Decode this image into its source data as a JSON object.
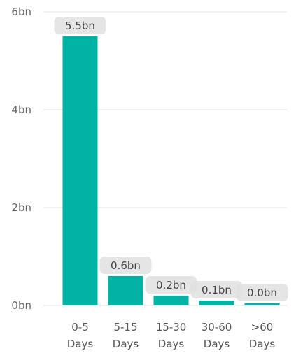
{
  "chart_data": {
    "type": "bar",
    "categories": [
      [
        "0-5",
        "Days"
      ],
      [
        "5-15",
        "Days"
      ],
      [
        "15-30",
        "Days"
      ],
      [
        "30-60",
        "Days"
      ],
      [
        ">60",
        "Days"
      ]
    ],
    "values": [
      5.5,
      0.6,
      0.2,
      0.1,
      0.0
    ],
    "data_labels": [
      "5.5bn",
      "0.6bn",
      "0.2bn",
      "0.1bn",
      "0.0bn"
    ],
    "yticks": [
      0,
      2,
      4,
      6
    ],
    "ytick_labels": [
      "0bn",
      "2bn",
      "4bn",
      "6bn"
    ],
    "ylim": [
      0,
      6
    ],
    "grid": true,
    "legend": "none",
    "title": "",
    "xlabel": "",
    "ylabel": "",
    "colors": {
      "bar": "#00b3a4",
      "grid": "#e6e6e6",
      "label_bg": "#e0e0e0"
    }
  }
}
